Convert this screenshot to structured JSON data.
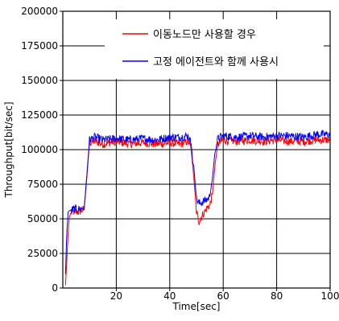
{
  "chart_data": {
    "type": "line",
    "xlabel": "Time[sec]",
    "ylabel": "Throughput[bit/sec]",
    "xlim": [
      0,
      100
    ],
    "ylim": [
      0,
      200000
    ],
    "x_ticks": [
      20,
      40,
      60,
      80,
      100
    ],
    "x_tick_labels": [
      "20",
      "40",
      "60",
      "80",
      "100"
    ],
    "y_ticks": [
      0,
      25000,
      50000,
      75000,
      100000,
      125000,
      150000,
      175000,
      200000
    ],
    "y_tick_labels": [
      "0",
      "25000",
      "50000",
      "75000",
      "100000",
      "125000",
      "150000",
      "175000",
      "200000"
    ],
    "grid": true,
    "legend_position": "top-right",
    "series": [
      {
        "name": "이동노드만 사용할 경우",
        "color": "#ff0000",
        "x": [
          1,
          1.5,
          2,
          2.5,
          3,
          4,
          6,
          8,
          9,
          10,
          12,
          15,
          20,
          25,
          30,
          35,
          40,
          44,
          47,
          48,
          48.5,
          49,
          50,
          51,
          52,
          53,
          54,
          55,
          56,
          57,
          58,
          60,
          65,
          70,
          75,
          80,
          85,
          90,
          95,
          100
        ],
        "y": [
          2000,
          20000,
          40000,
          52000,
          54000,
          55000,
          55000,
          57000,
          80000,
          105000,
          106000,
          104000,
          106000,
          104000,
          105000,
          104000,
          105000,
          104000,
          106000,
          100000,
          90000,
          80000,
          55000,
          48000,
          52000,
          55000,
          58000,
          60000,
          68000,
          90000,
          104000,
          107000,
          106000,
          107000,
          106000,
          107000,
          106000,
          106000,
          107000,
          107000
        ]
      },
      {
        "name": "고정 에이전트와 함께 사용시",
        "color": "#0000ff",
        "x": [
          1,
          1.5,
          2,
          2.5,
          3,
          4,
          6,
          8,
          9,
          10,
          12,
          15,
          20,
          25,
          30,
          35,
          40,
          44,
          47,
          48,
          48.5,
          49,
          50,
          51,
          52,
          53,
          54,
          55,
          56,
          57,
          58,
          60,
          65,
          70,
          75,
          80,
          85,
          90,
          95,
          100
        ],
        "y": [
          10000,
          40000,
          55000,
          56000,
          56000,
          57000,
          57000,
          58000,
          82000,
          107000,
          109000,
          107000,
          108000,
          107000,
          108000,
          107000,
          109000,
          109000,
          110000,
          104000,
          95000,
          88000,
          64000,
          61000,
          62000,
          63000,
          64000,
          66000,
          80000,
          100000,
          108000,
          110000,
          109000,
          110000,
          109000,
          110000,
          110000,
          109000,
          111000,
          111000
        ]
      }
    ]
  }
}
